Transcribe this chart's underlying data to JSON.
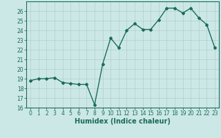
{
  "x": [
    0,
    1,
    2,
    3,
    4,
    5,
    6,
    7,
    8,
    9,
    10,
    11,
    12,
    13,
    14,
    15,
    16,
    17,
    18,
    19,
    20,
    21,
    22,
    23
  ],
  "y": [
    18.8,
    19.0,
    19.0,
    19.1,
    18.6,
    18.5,
    18.4,
    18.4,
    16.3,
    20.5,
    23.2,
    22.2,
    24.0,
    24.7,
    24.1,
    24.1,
    25.1,
    26.3,
    26.3,
    25.8,
    26.3,
    25.3,
    24.6,
    22.2
  ],
  "xlabel": "Humidex (Indice chaleur)",
  "xlim": [
    -0.5,
    23.5
  ],
  "ylim": [
    16,
    27
  ],
  "yticks": [
    16,
    17,
    18,
    19,
    20,
    21,
    22,
    23,
    24,
    25,
    26
  ],
  "xticks": [
    0,
    1,
    2,
    3,
    4,
    5,
    6,
    7,
    8,
    9,
    10,
    11,
    12,
    13,
    14,
    15,
    16,
    17,
    18,
    19,
    20,
    21,
    22,
    23
  ],
  "line_color": "#1a6b5a",
  "marker": "D",
  "marker_size": 2.0,
  "bg_color": "#cce8e6",
  "grid_color": "#b0cece",
  "tick_label_fontsize": 5.5,
  "xlabel_fontsize": 7.0,
  "line_width": 1.0
}
